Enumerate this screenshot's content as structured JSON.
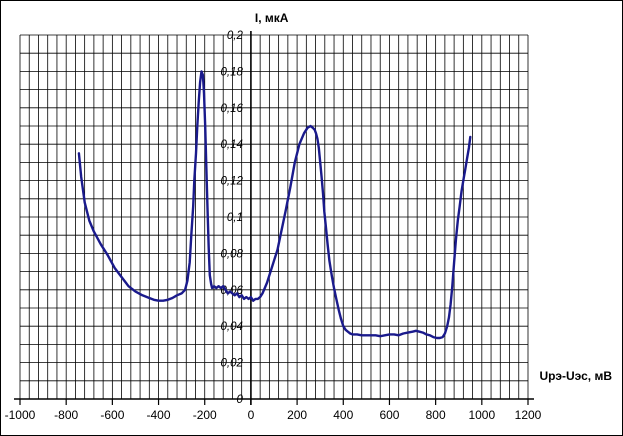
{
  "chart_data": {
    "type": "line",
    "title": "",
    "xlabel": "Uрэ-Uэс, мВ",
    "ylabel": "I, мкА",
    "xlim": [
      -1000,
      1200
    ],
    "ylim": [
      0,
      0.2
    ],
    "x_ticks": [
      -1000,
      -800,
      -600,
      -400,
      -200,
      0,
      200,
      400,
      600,
      800,
      1000,
      1200
    ],
    "y_ticks": [
      0,
      0.02,
      0.04,
      0.06,
      0.08,
      0.1,
      0.12,
      0.14,
      0.16,
      0.18,
      0.2
    ],
    "x_tick_labels": [
      "-1000",
      "-800",
      "-600",
      "-400",
      "-200",
      "0",
      "200",
      "400",
      "600",
      "800",
      "1000",
      "1200"
    ],
    "y_tick_labels": [
      "0",
      "0,02",
      "0,04",
      "0,06",
      "0,08",
      "0,1",
      "0,12",
      "0,14",
      "0,16",
      "0,18",
      "0,2"
    ],
    "grid": true,
    "minor_grid_x_step": 40,
    "minor_grid_y_step": 0.01,
    "line_color": "#1a1a8c",
    "series": [
      {
        "name": "",
        "x": [
          -745,
          -735,
          -720,
          -700,
          -680,
          -650,
          -620,
          -590,
          -560,
          -530,
          -500,
          -470,
          -440,
          -420,
          -400,
          -380,
          -360,
          -340,
          -320,
          -300,
          -285,
          -275,
          -265,
          -258,
          -250,
          -245,
          -238,
          -232,
          -226,
          -220,
          -214,
          -208,
          -203,
          -198,
          -193,
          -188,
          -183,
          -178,
          -172,
          -168,
          -160,
          -150,
          -140,
          -130,
          -120,
          -110,
          -100,
          -90,
          -80,
          -70,
          -60,
          -50,
          -40,
          -30,
          -20,
          -10,
          0,
          10,
          20,
          30,
          40,
          50,
          60,
          70,
          80,
          90,
          100,
          115,
          130,
          150,
          170,
          190,
          210,
          230,
          245,
          258,
          268,
          276,
          282,
          288,
          294,
          300,
          306,
          312,
          318,
          325,
          332,
          340,
          350,
          360,
          370,
          380,
          390,
          400,
          410,
          420,
          430,
          440,
          460,
          480,
          500,
          520,
          540,
          560,
          580,
          600,
          620,
          640,
          660,
          680,
          700,
          715,
          730,
          745,
          760,
          775,
          790,
          805,
          818,
          830,
          840,
          850,
          858,
          865,
          872,
          880,
          888,
          896,
          904,
          912,
          920,
          928,
          936,
          944,
          950
        ],
        "y": [
          0.135,
          0.122,
          0.108,
          0.098,
          0.092,
          0.085,
          0.079,
          0.072,
          0.067,
          0.062,
          0.059,
          0.057,
          0.0555,
          0.0545,
          0.054,
          0.054,
          0.0545,
          0.0555,
          0.057,
          0.058,
          0.06,
          0.065,
          0.075,
          0.09,
          0.106,
          0.12,
          0.135,
          0.15,
          0.163,
          0.174,
          0.18,
          0.178,
          0.168,
          0.15,
          0.128,
          0.105,
          0.083,
          0.068,
          0.063,
          0.061,
          0.062,
          0.061,
          0.062,
          0.061,
          0.062,
          0.06,
          0.058,
          0.059,
          0.058,
          0.057,
          0.058,
          0.056,
          0.057,
          0.055,
          0.056,
          0.055,
          0.056,
          0.054,
          0.055,
          0.055,
          0.056,
          0.058,
          0.061,
          0.064,
          0.068,
          0.072,
          0.076,
          0.082,
          0.091,
          0.103,
          0.116,
          0.13,
          0.14,
          0.146,
          0.149,
          0.15,
          0.149,
          0.148,
          0.146,
          0.143,
          0.138,
          0.13,
          0.122,
          0.113,
          0.103,
          0.094,
          0.085,
          0.076,
          0.068,
          0.061,
          0.055,
          0.049,
          0.044,
          0.04,
          0.038,
          0.037,
          0.036,
          0.0355,
          0.0355,
          0.035,
          0.035,
          0.035,
          0.035,
          0.0345,
          0.035,
          0.0355,
          0.0355,
          0.035,
          0.036,
          0.0365,
          0.037,
          0.0375,
          0.037,
          0.0365,
          0.0355,
          0.035,
          0.034,
          0.0335,
          0.0335,
          0.034,
          0.036,
          0.04,
          0.045,
          0.052,
          0.062,
          0.075,
          0.088,
          0.098,
          0.106,
          0.114,
          0.12,
          0.126,
          0.132,
          0.138,
          0.144
        ]
      }
    ]
  }
}
